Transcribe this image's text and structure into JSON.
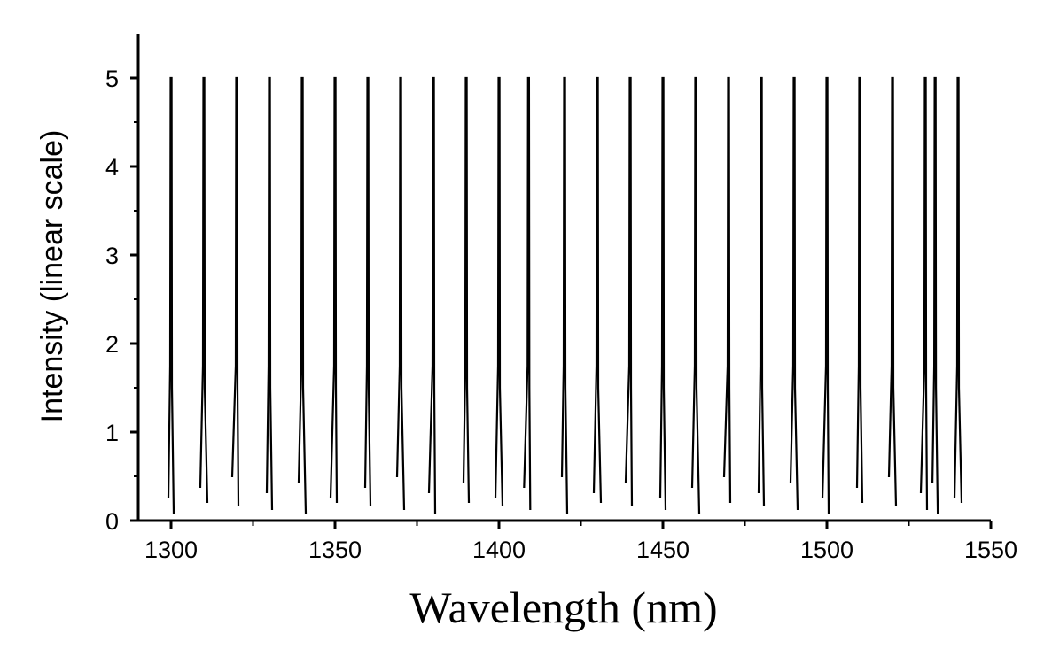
{
  "chart_data": {
    "type": "line",
    "title": "",
    "xlabel": "Wavelength (nm)",
    "ylabel": "Intensity (linear scale)",
    "xlim": [
      1290,
      1550
    ],
    "ylim": [
      0,
      5.5
    ],
    "xticks": [
      1300,
      1350,
      1400,
      1450,
      1500,
      1550
    ],
    "yticks": [
      0,
      1,
      2,
      3,
      4,
      5
    ],
    "grid": false,
    "legend": "none",
    "line_color": "#000000",
    "series": [
      {
        "peaks": [
          {
            "x": 1300,
            "y": 5.0
          },
          {
            "x": 1310,
            "y": 5.0
          },
          {
            "x": 1320,
            "y": 5.0
          },
          {
            "x": 1330,
            "y": 5.0
          },
          {
            "x": 1340,
            "y": 5.0
          },
          {
            "x": 1350,
            "y": 5.0
          },
          {
            "x": 1360,
            "y": 5.0
          },
          {
            "x": 1370,
            "y": 5.0
          },
          {
            "x": 1380,
            "y": 5.0
          },
          {
            "x": 1390,
            "y": 5.0
          },
          {
            "x": 1400,
            "y": 5.0
          },
          {
            "x": 1409,
            "y": 5.0
          },
          {
            "x": 1420,
            "y": 5.0
          },
          {
            "x": 1430,
            "y": 5.0
          },
          {
            "x": 1440,
            "y": 5.0
          },
          {
            "x": 1450,
            "y": 5.0
          },
          {
            "x": 1460,
            "y": 5.0
          },
          {
            "x": 1470,
            "y": 5.0
          },
          {
            "x": 1480,
            "y": 5.0
          },
          {
            "x": 1490,
            "y": 5.0
          },
          {
            "x": 1500,
            "y": 5.0
          },
          {
            "x": 1510,
            "y": 5.0
          },
          {
            "x": 1520,
            "y": 5.0
          },
          {
            "x": 1530,
            "y": 5.0
          },
          {
            "x": 1533,
            "y": 5.0
          },
          {
            "x": 1540,
            "y": 5.0
          }
        ]
      }
    ]
  }
}
